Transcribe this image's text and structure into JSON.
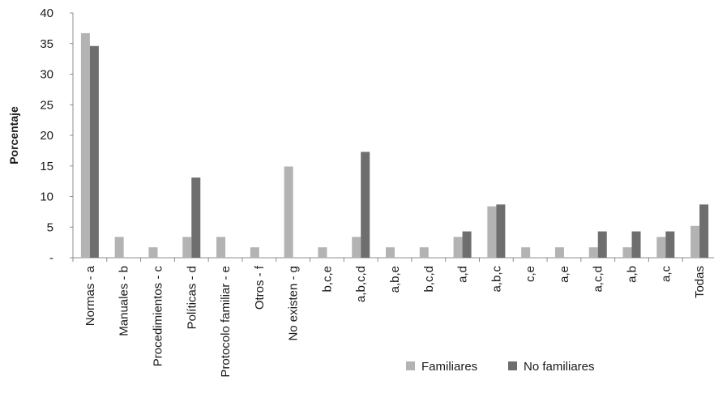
{
  "chart_data": {
    "type": "bar",
    "title": "",
    "xlabel": "",
    "ylabel": "Porcentaje",
    "ylim": [
      0,
      40
    ],
    "yticks": [
      0,
      5,
      10,
      15,
      20,
      25,
      30,
      35,
      40
    ],
    "ytick_labels": [
      "-",
      "5",
      "10",
      "15",
      "20",
      "25",
      "30",
      "35",
      "40"
    ],
    "grid": false,
    "legend_position": "bottom-right",
    "categories": [
      "Normas - a",
      "Manuales - b",
      "Procedimientos - c",
      "Políticas - d",
      "Protocolo familiar - e",
      "Otros - f",
      "No existen - g",
      "b,c,e",
      "a,b,c,d",
      "a,b,e",
      "b,c,d",
      "a,d",
      "a,b,c",
      "c,e",
      "a,e",
      "a,c,d",
      "a,b",
      "a,c",
      "Todas"
    ],
    "series": [
      {
        "name": "Familiares",
        "color": "#b3b3b3",
        "values": [
          36.7,
          3.4,
          1.7,
          3.4,
          3.4,
          1.7,
          14.9,
          1.7,
          3.4,
          1.7,
          1.7,
          3.4,
          8.4,
          1.7,
          1.7,
          1.7,
          1.7,
          3.4,
          5.2
        ]
      },
      {
        "name": "No familiares",
        "color": "#6e6e6e",
        "values": [
          34.6,
          0,
          0,
          13.1,
          0,
          0,
          0,
          0,
          17.3,
          0,
          0,
          4.3,
          8.7,
          0,
          0,
          4.3,
          4.3,
          4.3,
          8.7
        ]
      }
    ]
  }
}
